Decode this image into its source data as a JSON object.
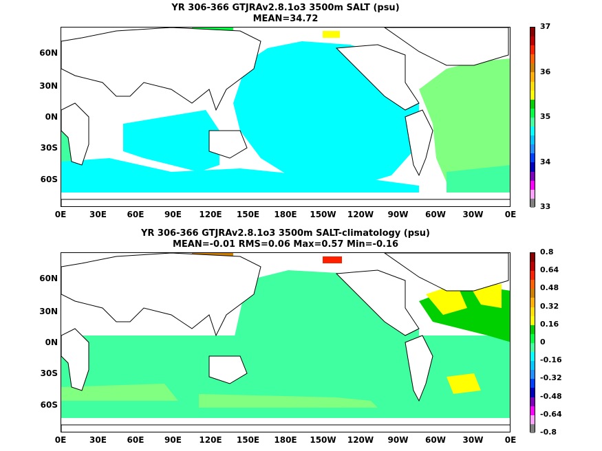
{
  "panel1": {
    "title_line1": "YR 306-366 GTJRAv2.8.1o3 3500m SALT (psu)",
    "title_line2": "MEAN=34.72",
    "colorbar_labels": [
      "37",
      "36",
      "35",
      "34",
      "33"
    ],
    "colorbar_colors": [
      "#8b0000",
      "#c00000",
      "#ff2000",
      "#ff6000",
      "#d08000",
      "#ffb000",
      "#ffe000",
      "#ffff00",
      "#00d000",
      "#00ff40",
      "#40ffa0",
      "#00ffff",
      "#00c8ff",
      "#2090ff",
      "#0040ff",
      "#0000c0",
      "#8000c0",
      "#ff00ff",
      "#ffa0ff",
      "#808080"
    ]
  },
  "panel2": {
    "title_line1": "YR 306-366 GTJRAv2.8.1o3 3500m SALT-climatology (psu)",
    "title_line2": "MEAN=-0.01   RMS=0.06   Max=0.57   Min=-0.16",
    "colorbar_labels": [
      "0.8",
      "0.64",
      "0.48",
      "0.32",
      "0.16",
      "0",
      "-0.16",
      "-0.32",
      "-0.48",
      "-0.64",
      "-0.8"
    ],
    "colorbar_colors": [
      "#8b0000",
      "#c00000",
      "#ff2000",
      "#ff6000",
      "#d08000",
      "#ffb000",
      "#ffe000",
      "#ffff00",
      "#00d000",
      "#00ff40",
      "#40ffa0",
      "#00ffff",
      "#00c8ff",
      "#2090ff",
      "#0040ff",
      "#0000c0",
      "#8000c0",
      "#ff00ff",
      "#ffa0ff",
      "#808080"
    ]
  },
  "axes": {
    "x_ticks": [
      "0E",
      "30E",
      "60E",
      "90E",
      "120E",
      "150E",
      "180E",
      "150W",
      "120W",
      "90W",
      "60W",
      "30W",
      "0E"
    ],
    "y_ticks": [
      "60N",
      "30N",
      "0N",
      "30S",
      "60S"
    ]
  },
  "colors": {
    "cyan_field": "#00ffff",
    "seafoam_field": "#40ffa0",
    "light_green_field": "#80ff80",
    "green_field": "#00d000",
    "yellow_field": "#ffff00",
    "orange_field": "#ff6000",
    "land": "#ffffff",
    "coast": "#000000"
  }
}
